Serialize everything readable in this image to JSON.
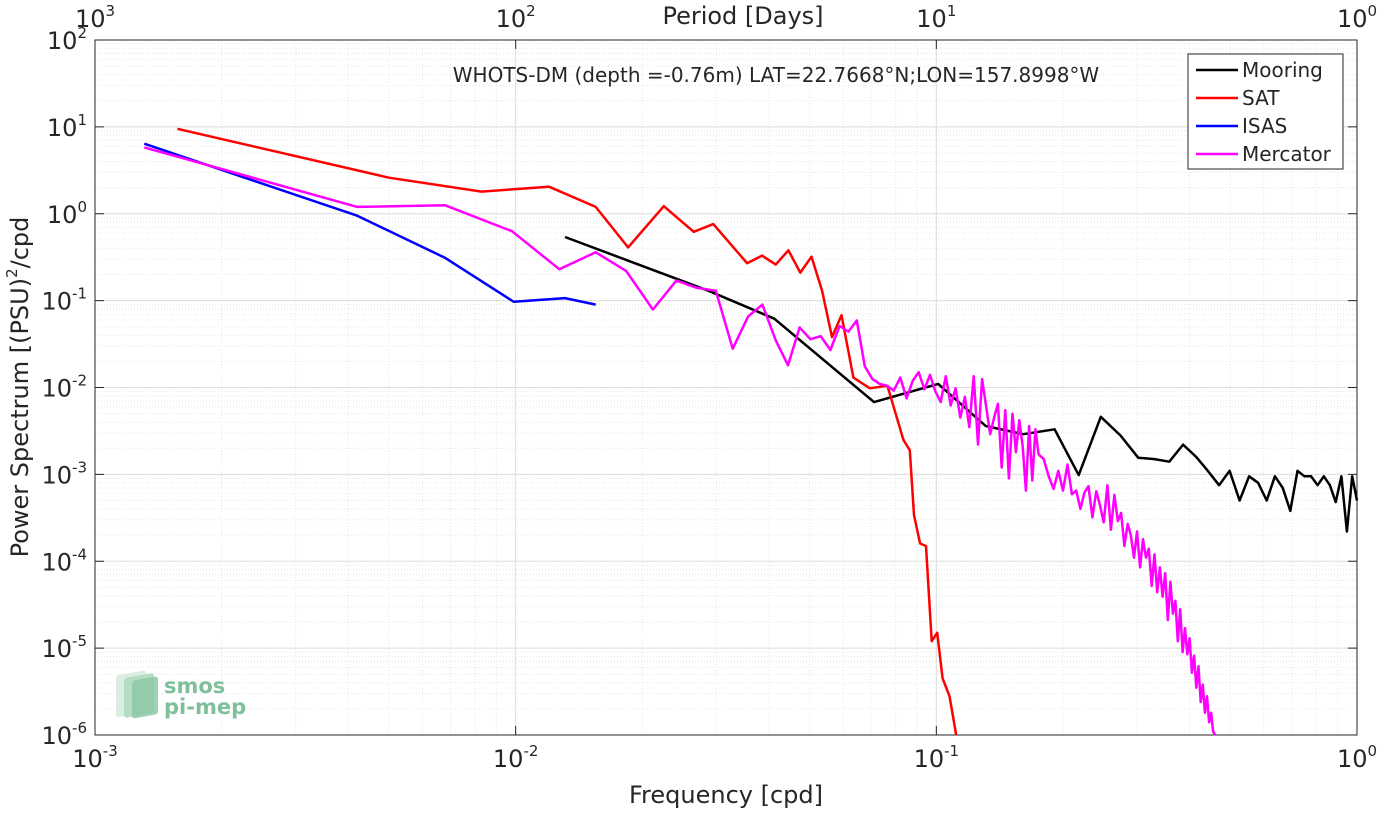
{
  "chart_data": {
    "type": "line",
    "title": "WHOTS-DM (depth =-0.76m) LAT=22.7668°N;LON=157.8998°W",
    "xlabel": "Frequency [cpd]",
    "ylabel": "Power Spectrum [(PSU)",
    "ylabel_sup": "2",
    "ylabel_tail": "/cpd",
    "top_xlabel": "Period [Days]",
    "xscale": "log",
    "yscale": "log",
    "xlim": [
      0.001,
      1
    ],
    "ylim": [
      1e-06,
      100
    ],
    "grid": true,
    "minor_grid": true,
    "legend_position": "top-right",
    "x_ticks": [
      {
        "value": 0.001,
        "base": "10",
        "exp": "-3"
      },
      {
        "value": 0.01,
        "base": "10",
        "exp": "-2"
      },
      {
        "value": 0.1,
        "base": "10",
        "exp": "-1"
      },
      {
        "value": 1,
        "base": "10",
        "exp": "0"
      }
    ],
    "y_ticks": [
      {
        "value": 1e-06,
        "base": "10",
        "exp": "-6"
      },
      {
        "value": 1e-05,
        "base": "10",
        "exp": "-5"
      },
      {
        "value": 0.0001,
        "base": "10",
        "exp": "-4"
      },
      {
        "value": 0.001,
        "base": "10",
        "exp": "-3"
      },
      {
        "value": 0.01,
        "base": "10",
        "exp": "-2"
      },
      {
        "value": 0.1,
        "base": "10",
        "exp": "-1"
      },
      {
        "value": 1,
        "base": "10",
        "exp": "0"
      },
      {
        "value": 10,
        "base": "10",
        "exp": "1"
      },
      {
        "value": 100,
        "base": "10",
        "exp": "2"
      }
    ],
    "top_ticks": [
      {
        "value": 0.001,
        "base": "10",
        "exp": "3"
      },
      {
        "value": 0.01,
        "base": "10",
        "exp": "2"
      },
      {
        "value": 0.1,
        "base": "10",
        "exp": "1"
      },
      {
        "value": 1,
        "base": "10",
        "exp": "0"
      }
    ],
    "series": [
      {
        "name": "Mooring",
        "color": "#000000",
        "x": [
          0.0131,
          0.0287,
          0.0412,
          0.0711,
          0.101,
          0.131,
          0.161,
          0.191,
          0.218,
          0.246,
          0.274,
          0.302,
          0.33,
          0.358,
          0.386,
          0.414,
          0.442,
          0.47,
          0.498,
          0.526,
          0.554,
          0.582,
          0.61,
          0.638,
          0.666,
          0.694,
          0.722,
          0.75,
          0.778,
          0.806,
          0.834,
          0.862,
          0.89,
          0.918,
          0.946,
          0.974,
          1.0
        ],
        "y": [
          0.54,
          0.13,
          0.062,
          0.0068,
          0.011,
          0.0036,
          0.0029,
          0.0033,
          0.00098,
          0.0046,
          0.0028,
          0.00155,
          0.0015,
          0.0014,
          0.0022,
          0.0016,
          0.0011,
          0.00075,
          0.0011,
          0.0005,
          0.00095,
          0.0008,
          0.0005,
          0.00095,
          0.0007,
          0.00038,
          0.0011,
          0.00095,
          0.00095,
          0.00075,
          0.00095,
          0.00075,
          0.00048,
          0.00095,
          0.00022,
          0.00095,
          0.0005
        ]
      },
      {
        "name": "SAT",
        "color": "#ff0000",
        "x": [
          0.00157,
          0.005,
          0.0083,
          0.012,
          0.0155,
          0.0185,
          0.0225,
          0.0265,
          0.0295,
          0.0355,
          0.0385,
          0.0415,
          0.0445,
          0.0475,
          0.0505,
          0.0535,
          0.0565,
          0.0595,
          0.0635,
          0.0695,
          0.0765,
          0.0835,
          0.0865,
          0.0885,
          0.0915,
          0.0945,
          0.0975,
          0.1005,
          0.1035,
          0.1075,
          0.1115
        ],
        "y": [
          9.5,
          2.6,
          1.8,
          2.05,
          1.2,
          0.41,
          1.22,
          0.62,
          0.76,
          0.27,
          0.33,
          0.26,
          0.38,
          0.21,
          0.32,
          0.13,
          0.038,
          0.068,
          0.013,
          0.0098,
          0.0105,
          0.0025,
          0.0019,
          0.00034,
          0.00016,
          0.00015,
          1.2e-05,
          1.5e-05,
          4.5e-06,
          2.8e-06,
          1e-06
        ]
      },
      {
        "name": "ISAS",
        "color": "#0000ff",
        "x": [
          0.00131,
          0.0042,
          0.0068,
          0.0099,
          0.0131,
          0.0155
        ],
        "y": [
          6.4,
          0.95,
          0.31,
          0.097,
          0.107,
          0.09
        ]
      },
      {
        "name": "Mercator",
        "color": "#ff00ff",
        "x": [
          0.00131,
          0.0042,
          0.0068,
          0.0098,
          0.0127,
          0.0155,
          0.0183,
          0.0212,
          0.0241,
          0.027,
          0.0299,
          0.0328,
          0.0357,
          0.0386,
          0.0415,
          0.0444,
          0.0473,
          0.0502,
          0.0531,
          0.056,
          0.0589,
          0.0618,
          0.0647,
          0.0676,
          0.0705,
          0.0734,
          0.0763,
          0.0792,
          0.0821,
          0.085,
          0.0879,
          0.0908,
          0.0937,
          0.0966,
          0.0995,
          0.1024,
          0.1053,
          0.1082,
          0.1111,
          0.114,
          0.1169,
          0.1198,
          0.1227,
          0.1256,
          0.1285,
          0.1314,
          0.1343,
          0.1372,
          0.1401,
          0.143,
          0.1459,
          0.1488,
          0.1517,
          0.1546,
          0.1575,
          0.1604,
          0.1633,
          0.1662,
          0.1691,
          0.172,
          0.175,
          0.18,
          0.185,
          0.19,
          0.195,
          0.2,
          0.205,
          0.21,
          0.215,
          0.22,
          0.225,
          0.23,
          0.235,
          0.24,
          0.245,
          0.25,
          0.255,
          0.26,
          0.265,
          0.27,
          0.275,
          0.28,
          0.285,
          0.29,
          0.295,
          0.3,
          0.305,
          0.31,
          0.315,
          0.32,
          0.325,
          0.33,
          0.335,
          0.34,
          0.345,
          0.35,
          0.355,
          0.36,
          0.365,
          0.37,
          0.375,
          0.38,
          0.385,
          0.39,
          0.395,
          0.4,
          0.405,
          0.41,
          0.415,
          0.42,
          0.425,
          0.43,
          0.435,
          0.44,
          0.445,
          0.45,
          0.455,
          0.46
        ],
        "y": [
          5.8,
          1.2,
          1.25,
          0.63,
          0.23,
          0.36,
          0.22,
          0.079,
          0.17,
          0.14,
          0.13,
          0.028,
          0.066,
          0.09,
          0.035,
          0.018,
          0.049,
          0.036,
          0.039,
          0.027,
          0.051,
          0.044,
          0.059,
          0.0175,
          0.0125,
          0.011,
          0.0105,
          0.0092,
          0.013,
          0.0075,
          0.012,
          0.015,
          0.0095,
          0.014,
          0.009,
          0.0068,
          0.0135,
          0.0062,
          0.0098,
          0.0045,
          0.0078,
          0.0035,
          0.0135,
          0.0022,
          0.0125,
          0.006,
          0.0029,
          0.0045,
          0.0065,
          0.0012,
          0.0055,
          0.0009,
          0.005,
          0.0018,
          0.0042,
          0.0021,
          0.00065,
          0.0036,
          0.00085,
          0.0033,
          0.0017,
          0.0015,
          0.00095,
          0.00068,
          0.0011,
          0.00065,
          0.0013,
          0.00059,
          0.00065,
          0.0004,
          0.00062,
          0.00073,
          0.00032,
          0.00064,
          0.00044,
          0.00028,
          0.00075,
          0.00023,
          0.00058,
          0.00029,
          0.00036,
          0.00015,
          0.00027,
          0.0002,
          0.00011,
          0.00022,
          8.5e-05,
          0.00018,
          0.00011,
          0.00014,
          5.2e-05,
          0.00012,
          4.4e-05,
          8.5e-05,
          3.9e-05,
          7.3e-05,
          2.1e-05,
          5.8e-05,
          2.5e-05,
          3.5e-05,
          1.2e-05,
          2.8e-05,
          9e-06,
          1.7e-05,
          8.5e-06,
          1.3e-05,
          5.2e-06,
          8.2e-06,
          3.5e-06,
          6.2e-06,
          2.4e-06,
          3.8e-06,
          1.8e-06,
          2.8e-06,
          1.4e-06,
          1.8e-06,
          1.1e-06,
          1e-06
        ]
      }
    ]
  },
  "logo": {
    "line1": "smos",
    "line2": "pi-mep",
    "color": "#7fbf9a"
  }
}
